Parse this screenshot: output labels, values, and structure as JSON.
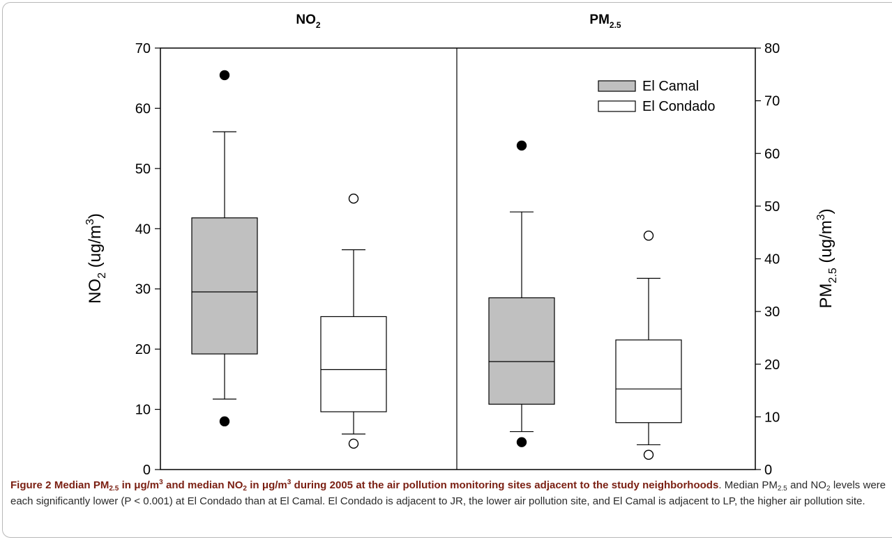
{
  "chart_data": {
    "type": "box",
    "colors": {
      "el_camal_fill": "#c0c0c0",
      "el_condado_fill": "#ffffff",
      "stroke": "#000000"
    },
    "legend": {
      "placement": "top-right",
      "entries": [
        {
          "name": "El Camal",
          "fill": "#c0c0c0",
          "marker": "filled-circle"
        },
        {
          "name": "El Condado",
          "fill": "#ffffff",
          "marker": "open-circle"
        }
      ]
    },
    "panels": [
      {
        "title": "NO",
        "title_sub": "2",
        "axis": {
          "side": "left",
          "label": "NO",
          "label_sub": "2",
          "label_rest": " (ug/m",
          "label_sup": "3",
          "label_end": ")",
          "ylim": [
            0,
            70
          ],
          "ticks": [
            "0",
            "10",
            "20",
            "30",
            "40",
            "50",
            "60",
            "70"
          ]
        },
        "boxes": [
          {
            "series": "El Camal",
            "whisker_low": 11.7,
            "q1": 19.2,
            "median": 29.5,
            "q3": 41.8,
            "whisker_high": 56.1,
            "outliers": [
              8.0,
              65.5
            ]
          },
          {
            "series": "El Condado",
            "whisker_low": 5.9,
            "q1": 9.6,
            "median": 16.6,
            "q3": 25.4,
            "whisker_high": 36.5,
            "outliers": [
              4.3,
              45.0
            ]
          }
        ]
      },
      {
        "title": "PM",
        "title_sub": "2.5",
        "axis": {
          "side": "right",
          "label": "PM",
          "label_sub": "2.5",
          "label_rest": " (ug/m",
          "label_sup": "3",
          "label_end": ")",
          "ylim": [
            0,
            80
          ],
          "ticks": [
            "0",
            "10",
            "20",
            "30",
            "40",
            "50",
            "60",
            "70",
            "80"
          ]
        },
        "boxes": [
          {
            "series": "El Camal",
            "whisker_low": 7.2,
            "q1": 12.4,
            "median": 20.5,
            "q3": 32.6,
            "whisker_high": 48.9,
            "outliers": [
              5.2,
              61.5
            ]
          },
          {
            "series": "El Condado",
            "whisker_low": 4.7,
            "q1": 8.9,
            "median": 15.3,
            "q3": 24.6,
            "whisker_high": 36.3,
            "outliers": [
              2.8,
              44.4
            ]
          }
        ]
      }
    ]
  },
  "caption": {
    "label": "Figure 2",
    "head_1": "Median PM",
    "head_sub_1": "2.5",
    "head_2": " in μg/m",
    "head_sup_1": "3",
    "head_3": " and median NO",
    "head_sub_2": "2",
    "head_4": " in μg/m",
    "head_sup_2": "3",
    "head_5": " during 2005 at the air pollution monitoring sites adjacent to the study neighborhoods",
    "body_1": ". Median PM",
    "body_sub_1": "2.5",
    "body_2": " and NO",
    "body_sub_2": "2",
    "body_3": " levels were each significantly lower (P < 0.001) at El Condado than at El Camal. El Condado is adjacent to JR, the lower air pollution site, and El Camal is adjacent to LP, the higher air pollution site."
  }
}
